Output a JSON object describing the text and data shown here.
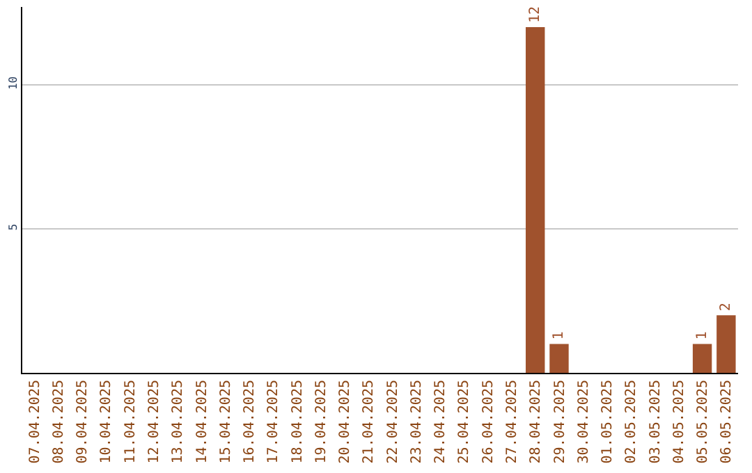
{
  "chart_data": {
    "type": "bar",
    "categories": [
      "07.04.2025",
      "08.04.2025",
      "09.04.2025",
      "10.04.2025",
      "11.04.2025",
      "12.04.2025",
      "13.04.2025",
      "14.04.2025",
      "15.04.2025",
      "16.04.2025",
      "17.04.2025",
      "18.04.2025",
      "19.04.2025",
      "20.04.2025",
      "21.04.2025",
      "22.04.2025",
      "23.04.2025",
      "24.04.2025",
      "25.04.2025",
      "26.04.2025",
      "27.04.2025",
      "28.04.2025",
      "29.04.2025",
      "30.04.2025",
      "01.05.2025",
      "02.05.2025",
      "03.05.2025",
      "04.05.2025",
      "05.05.2025",
      "06.05.2025"
    ],
    "values": [
      0,
      0,
      0,
      0,
      0,
      0,
      0,
      0,
      0,
      0,
      0,
      0,
      0,
      0,
      0,
      0,
      0,
      0,
      0,
      0,
      0,
      12,
      1,
      0,
      0,
      0,
      0,
      0,
      1,
      2
    ],
    "value_labels": [
      null,
      null,
      null,
      null,
      null,
      null,
      null,
      null,
      null,
      null,
      null,
      null,
      null,
      null,
      null,
      null,
      null,
      null,
      null,
      null,
      null,
      "12",
      "1",
      null,
      null,
      null,
      null,
      null,
      "1",
      "2"
    ],
    "color": "#a0522d",
    "ylim": [
      0,
      12.7
    ],
    "yticks": [
      5,
      10
    ],
    "grid": "y",
    "legend": false
  }
}
